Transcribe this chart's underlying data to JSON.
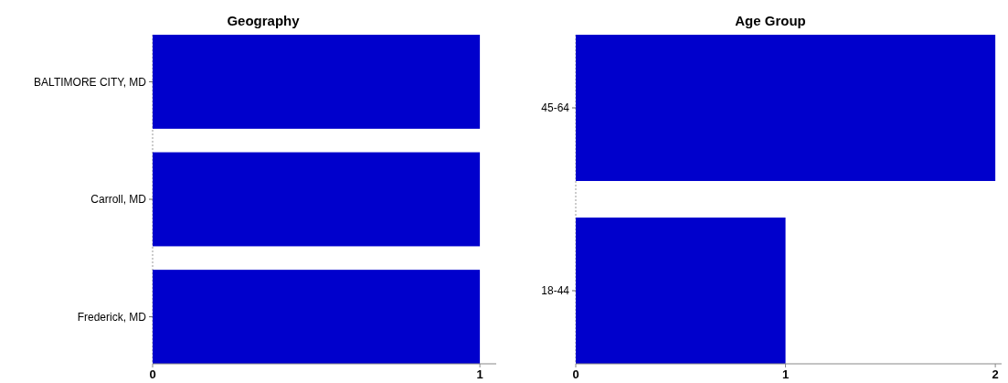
{
  "chart_data": [
    {
      "type": "bar",
      "title": "Geography",
      "orientation": "horizontal",
      "categories": [
        "BALTIMORE CITY, MD",
        "Carroll, MD",
        "Frederick, MD"
      ],
      "values": [
        1,
        1,
        1
      ],
      "color": "#0000cc",
      "xlim": [
        0,
        1.05
      ],
      "xticks": [
        0,
        1
      ]
    },
    {
      "type": "bar",
      "title": "Age Group",
      "orientation": "horizontal",
      "categories": [
        "45-64",
        "18-44"
      ],
      "values": [
        2,
        1
      ],
      "color": "#0000cc",
      "xlim": [
        0,
        2.03
      ],
      "xticks": [
        0,
        1,
        2
      ]
    }
  ]
}
